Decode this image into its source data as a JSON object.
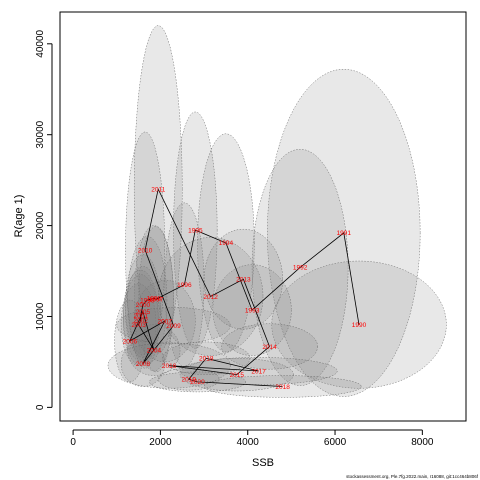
{
  "chart_data": {
    "type": "scatter",
    "xlabel": "SSB",
    "ylabel": "R(age 1)",
    "xlim": [
      -300,
      9000
    ],
    "ylim": [
      -1500,
      43500
    ],
    "xticks": [
      0,
      2000,
      4000,
      6000,
      8000
    ],
    "yticks": [
      0,
      10000,
      20000,
      30000,
      40000
    ],
    "grid": false,
    "series": [
      {
        "points": [
          {
            "year": "1990",
            "ssb": 6550,
            "r": 9100,
            "ex": 2000,
            "ey": 7000
          },
          {
            "year": "1991",
            "ssb": 6200,
            "r": 19200,
            "ex": 1750,
            "ey": 18000
          },
          {
            "year": "1992",
            "ssb": 5200,
            "r": 15400,
            "ex": 1100,
            "ey": 13000
          },
          {
            "year": "1993",
            "ssb": 4100,
            "r": 10700,
            "ex": 900,
            "ey": 5000
          },
          {
            "year": "1994",
            "ssb": 3500,
            "r": 18100,
            "ex": 650,
            "ey": 12000
          },
          {
            "year": "1995",
            "ssb": 2800,
            "r": 19500,
            "ex": 500,
            "ey": 13000
          },
          {
            "year": "1996",
            "ssb": 2550,
            "r": 13500,
            "ex": 450,
            "ey": 9000
          },
          {
            "year": "1997",
            "ssb": 1900,
            "r": 11900,
            "ex": 400,
            "ey": 8000
          },
          {
            "year": "1998",
            "ssb": 1850,
            "r": 12000,
            "ex": 450,
            "ey": 8000
          },
          {
            "year": "1999",
            "ssb": 1700,
            "r": 11800,
            "ex": 450,
            "ey": 7000
          },
          {
            "year": "2000",
            "ssb": 1600,
            "r": 11300,
            "ex": 400,
            "ey": 5500
          },
          {
            "year": "2001",
            "ssb": 1550,
            "r": 10100,
            "ex": 400,
            "ey": 5000
          },
          {
            "year": "2002",
            "ssb": 1550,
            "r": 9600,
            "ex": 400,
            "ey": 5000
          },
          {
            "year": "2003",
            "ssb": 1500,
            "r": 9100,
            "ex": 400,
            "ey": 4500
          },
          {
            "year": "2004",
            "ssb": 1850,
            "r": 6300,
            "ex": 600,
            "ey": 2800
          },
          {
            "year": "2005",
            "ssb": 1600,
            "r": 10500,
            "ex": 400,
            "ey": 5000
          },
          {
            "year": "2006",
            "ssb": 1300,
            "r": 7300,
            "ex": 350,
            "ey": 4500
          },
          {
            "year": "2007",
            "ssb": 2100,
            "r": 9500,
            "ex": 700,
            "ey": 4500
          },
          {
            "year": "2008",
            "ssb": 1600,
            "r": 4800,
            "ex": 500,
            "ey": 2500
          },
          {
            "year": "2009",
            "ssb": 2300,
            "r": 9000,
            "ex": 1300,
            "ey": 2000
          },
          {
            "year": "2010",
            "ssb": 1650,
            "r": 17300,
            "ex": 450,
            "ey": 13000
          },
          {
            "year": "2011",
            "ssb": 1950,
            "r": 24000,
            "ex": 550,
            "ey": 18000
          },
          {
            "year": "2012",
            "ssb": 3150,
            "r": 12200,
            "ex": 1200,
            "ey": 6500
          },
          {
            "year": "2013",
            "ssb": 3900,
            "r": 14100,
            "ex": 900,
            "ey": 5500
          },
          {
            "year": "2014",
            "ssb": 4500,
            "r": 6700,
            "ex": 1100,
            "ey": 2500
          },
          {
            "year": "2015",
            "ssb": 3750,
            "r": 3600,
            "ex": 1300,
            "ey": 1800
          },
          {
            "year": "2016",
            "ssb": 2200,
            "r": 4600,
            "ex": 1400,
            "ey": 2500
          },
          {
            "year": "2017",
            "ssb": 4250,
            "r": 4000,
            "ex": 1800,
            "ey": 1500
          },
          {
            "year": "2018",
            "ssb": 3050,
            "r": 5400,
            "ex": 1000,
            "ey": 1800
          },
          {
            "year": "2019",
            "ssb": 2650,
            "r": 3100,
            "ex": 700,
            "ey": 1200
          },
          {
            "year": "2020",
            "ssb": 2850,
            "r": 2800,
            "ex": 1100,
            "ey": 1100
          },
          {
            "year": "2018",
            "ssb": 4800,
            "r": 2300,
            "ex": 1800,
            "ey": 1200
          }
        ]
      }
    ]
  },
  "caption": "stockassessment.org, Ple.7fg.2022.main, r16088, git:1cc464b806f"
}
